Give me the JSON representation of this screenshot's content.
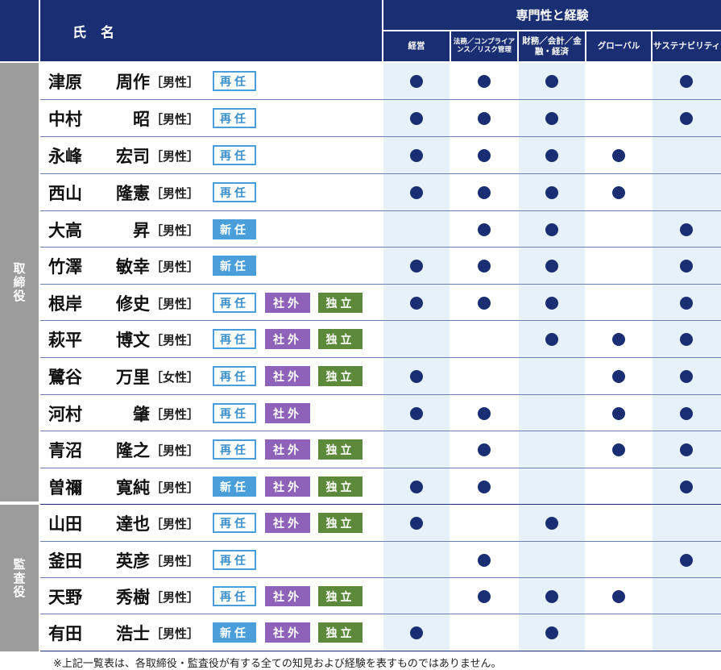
{
  "header": {
    "name_label": "氏名",
    "expertise_label": "専門性と経験",
    "columns": [
      "経営",
      "法務／コンプライアンス／リスク管理",
      "財務／会計／金融・経済",
      "グローバル",
      "サステナビリティ"
    ]
  },
  "roles": {
    "directors": "取締役",
    "auditors": "監査役"
  },
  "badges": {
    "reappointed": "再任",
    "new": "新任",
    "outside": "社外",
    "independent": "独立"
  },
  "members": [
    {
      "family": "津原",
      "given": "周作",
      "gender": "［男性］",
      "status": "reappointed",
      "outside": false,
      "independent": false,
      "skills": [
        true,
        true,
        true,
        false,
        true
      ]
    },
    {
      "family": "中村",
      "given": "昭",
      "gender": "［男性］",
      "status": "reappointed",
      "outside": false,
      "independent": false,
      "skills": [
        true,
        true,
        true,
        false,
        true
      ]
    },
    {
      "family": "永峰",
      "given": "宏司",
      "gender": "［男性］",
      "status": "reappointed",
      "outside": false,
      "independent": false,
      "skills": [
        true,
        true,
        true,
        true,
        false
      ]
    },
    {
      "family": "西山",
      "given": "隆憲",
      "gender": "［男性］",
      "status": "reappointed",
      "outside": false,
      "independent": false,
      "skills": [
        true,
        true,
        true,
        true,
        false
      ]
    },
    {
      "family": "大高",
      "given": "昇",
      "gender": "［男性］",
      "status": "new",
      "outside": false,
      "independent": false,
      "skills": [
        false,
        true,
        true,
        false,
        true
      ]
    },
    {
      "family": "竹澤",
      "given": "敏幸",
      "gender": "［男性］",
      "status": "new",
      "outside": false,
      "independent": false,
      "skills": [
        true,
        true,
        true,
        false,
        true
      ]
    },
    {
      "family": "根岸",
      "given": "修史",
      "gender": "［男性］",
      "status": "reappointed",
      "outside": true,
      "independent": true,
      "skills": [
        true,
        true,
        true,
        false,
        true
      ]
    },
    {
      "family": "萩平",
      "given": "博文",
      "gender": "［男性］",
      "status": "reappointed",
      "outside": true,
      "independent": true,
      "skills": [
        false,
        false,
        true,
        true,
        true
      ]
    },
    {
      "family": "鷺谷",
      "given": "万里",
      "gender": "［女性］",
      "status": "reappointed",
      "outside": true,
      "independent": true,
      "skills": [
        true,
        false,
        false,
        true,
        true
      ]
    },
    {
      "family": "河村",
      "given": "肇",
      "gender": "［男性］",
      "status": "reappointed",
      "outside": true,
      "independent": false,
      "skills": [
        true,
        true,
        false,
        true,
        true
      ]
    },
    {
      "family": "青沼",
      "given": "隆之",
      "gender": "［男性］",
      "status": "reappointed",
      "outside": true,
      "independent": true,
      "skills": [
        false,
        true,
        false,
        true,
        true
      ]
    },
    {
      "family": "曽禰",
      "given": "寛純",
      "gender": "［男性］",
      "status": "new",
      "outside": true,
      "independent": true,
      "skills": [
        true,
        true,
        false,
        false,
        true
      ]
    },
    {
      "family": "山田",
      "given": "達也",
      "gender": "［男性］",
      "status": "reappointed",
      "outside": true,
      "independent": true,
      "skills": [
        true,
        false,
        true,
        false,
        false
      ]
    },
    {
      "family": "釜田",
      "given": "英彦",
      "gender": "［男性］",
      "status": "reappointed",
      "outside": false,
      "independent": false,
      "skills": [
        false,
        true,
        false,
        false,
        true
      ]
    },
    {
      "family": "天野",
      "given": "秀樹",
      "gender": "［男性］",
      "status": "reappointed",
      "outside": true,
      "independent": true,
      "skills": [
        false,
        true,
        true,
        true,
        false
      ]
    },
    {
      "family": "有田",
      "given": "浩士",
      "gender": "［男性］",
      "status": "new",
      "outside": true,
      "independent": true,
      "skills": [
        true,
        false,
        true,
        false,
        false
      ]
    }
  ],
  "footnote": "※上記一覧表は、各取締役・監査役が有する全ての知見および経験を表すものではありません。"
}
